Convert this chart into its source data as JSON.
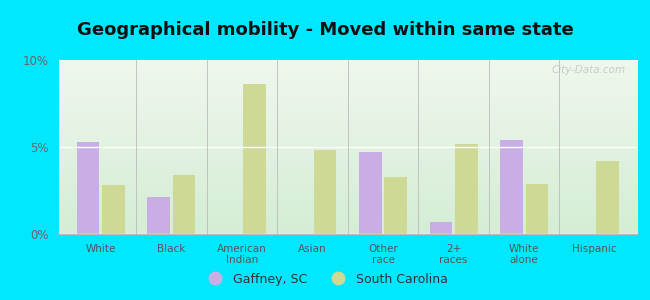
{
  "title": "Geographical mobility - Moved within same state",
  "categories": [
    "White",
    "Black",
    "American\nIndian",
    "Asian",
    "Other\nrace",
    "2+\nraces",
    "White\nalone",
    "Hispanic"
  ],
  "gaffney_values": [
    5.3,
    2.1,
    0.0,
    0.0,
    4.7,
    0.7,
    5.4,
    0.0
  ],
  "sc_values": [
    2.8,
    3.4,
    8.6,
    4.8,
    3.3,
    5.2,
    2.9,
    4.2
  ],
  "gaffney_color": "#c9aee5",
  "sc_color": "#cdd994",
  "background_top": "#f0f7ee",
  "background_bottom": "#d4edd4",
  "outer_background": "#00e8ff",
  "ylim": [
    0,
    10
  ],
  "yticks": [
    0,
    5,
    10
  ],
  "ytick_labels": [
    "0%",
    "5%",
    "10%"
  ],
  "legend_gaffney": "Gaffney, SC",
  "legend_sc": "South Carolina",
  "bar_width": 0.32,
  "title_fontsize": 13,
  "watermark": "City-Data.com"
}
